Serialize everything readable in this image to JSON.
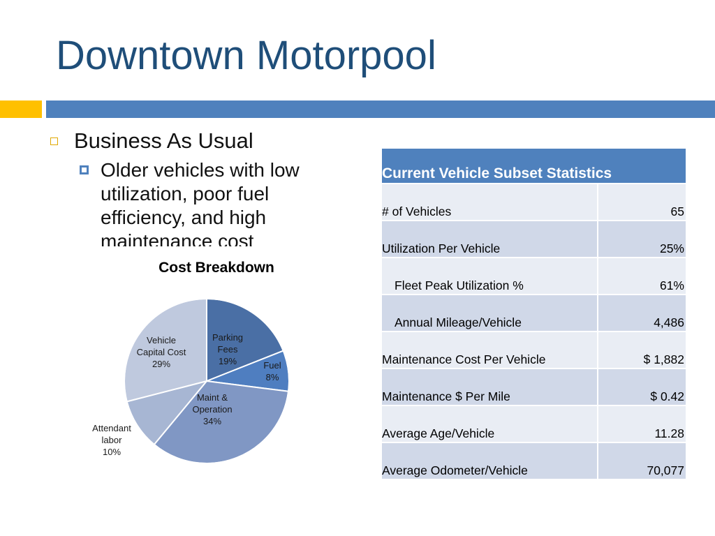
{
  "title": "Downtown Motorpool",
  "bullets": {
    "level1": "Business As Usual",
    "level2": "Older vehicles with low utilization, poor fuel efficiency, and high maintenance cost"
  },
  "colors": {
    "title": "#1f4e79",
    "accent_gold": "#ffc000",
    "accent_blue": "#4f81bd"
  },
  "chart_data": {
    "type": "pie",
    "title": "Cost Breakdown",
    "slices": [
      {
        "label": "Parking Fees",
        "display": "Parking\nFees\n19%",
        "value": 19,
        "color": "#4a6fa5"
      },
      {
        "label": "Fuel",
        "display": "Fuel\n8%",
        "value": 8,
        "color": "#4f7ec0"
      },
      {
        "label": "Maint & Operation",
        "display": "Maint &\nOperation\n34%",
        "value": 34,
        "color": "#8097c4"
      },
      {
        "label": "Attendant labor",
        "display": "Attendant\nlabor\n10%",
        "value": 10,
        "color": "#a7b6d3"
      },
      {
        "label": "Vehicle Capital Cost",
        "display": "Vehicle\nCapital Cost\n29%",
        "value": 29,
        "color": "#bfc9de"
      }
    ]
  },
  "table": {
    "header": "Current Vehicle Subset Statistics",
    "rows": [
      {
        "label": "# of Vehicles",
        "value": "65"
      },
      {
        "label": "Utilization Per Vehicle",
        "value": "25%"
      },
      {
        "label": "Fleet Peak Utilization %",
        "value": "61%"
      },
      {
        "label": "Annual Mileage/Vehicle",
        "value": "4,486"
      },
      {
        "label": "Maintenance Cost Per Vehicle",
        "value": "$ 1,882"
      },
      {
        "label": "Maintenance $ Per Mile",
        "value": "$ 0.42"
      },
      {
        "label": "Average Age/Vehicle",
        "value": "11.28"
      },
      {
        "label": "Average Odometer/Vehicle",
        "value": "70,077"
      }
    ]
  }
}
